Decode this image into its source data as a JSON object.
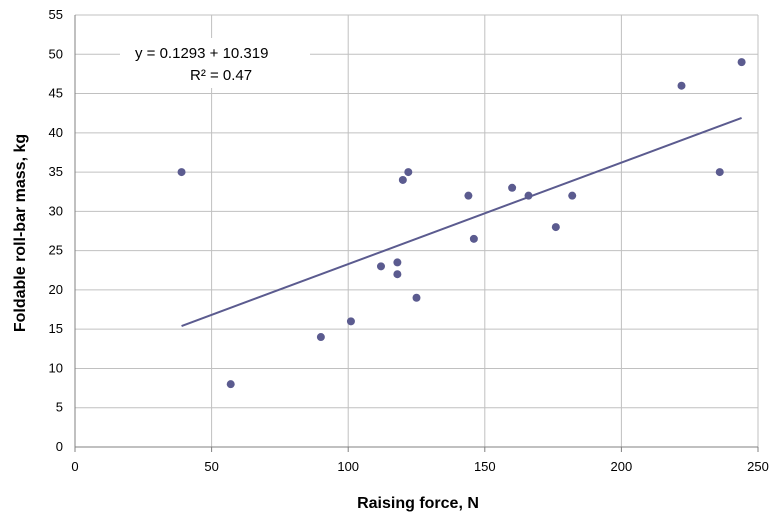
{
  "chart_data": {
    "type": "scatter",
    "xlabel": "Raising force, N",
    "ylabel": "Foldable roll-bar mass, kg",
    "xlim": [
      0,
      250
    ],
    "ylim": [
      0,
      55
    ],
    "x_ticks": [
      "0",
      "50",
      "100",
      "150",
      "200",
      "250"
    ],
    "y_ticks": [
      "0",
      "5",
      "10",
      "15",
      "20",
      "25",
      "30",
      "35",
      "40",
      "45",
      "50",
      "55"
    ],
    "grid": true,
    "series": [
      {
        "points": [
          {
            "x": 39,
            "y": 35
          },
          {
            "x": 57,
            "y": 8
          },
          {
            "x": 90,
            "y": 14
          },
          {
            "x": 101,
            "y": 16
          },
          {
            "x": 112,
            "y": 23
          },
          {
            "x": 118,
            "y": 23.5
          },
          {
            "x": 118,
            "y": 22
          },
          {
            "x": 120,
            "y": 34
          },
          {
            "x": 122,
            "y": 35
          },
          {
            "x": 125,
            "y": 19
          },
          {
            "x": 144,
            "y": 32
          },
          {
            "x": 146,
            "y": 26.5
          },
          {
            "x": 160,
            "y": 33
          },
          {
            "x": 166,
            "y": 32
          },
          {
            "x": 176,
            "y": 28
          },
          {
            "x": 182,
            "y": 32
          },
          {
            "x": 222,
            "y": 46
          },
          {
            "x": 236,
            "y": 35
          },
          {
            "x": 244,
            "y": 49
          }
        ]
      }
    ],
    "trendline": {
      "x": [
        39,
        244
      ],
      "y": [
        15.4,
        41.9
      ],
      "equation": "y = 0.1293 + 10.319",
      "r_squared": "R² = 0.47"
    },
    "colors": {
      "marker": "#5b5b8f",
      "trendline": "#5b5b8f",
      "grid": "#c0c0c0",
      "axis": "#808080"
    }
  }
}
